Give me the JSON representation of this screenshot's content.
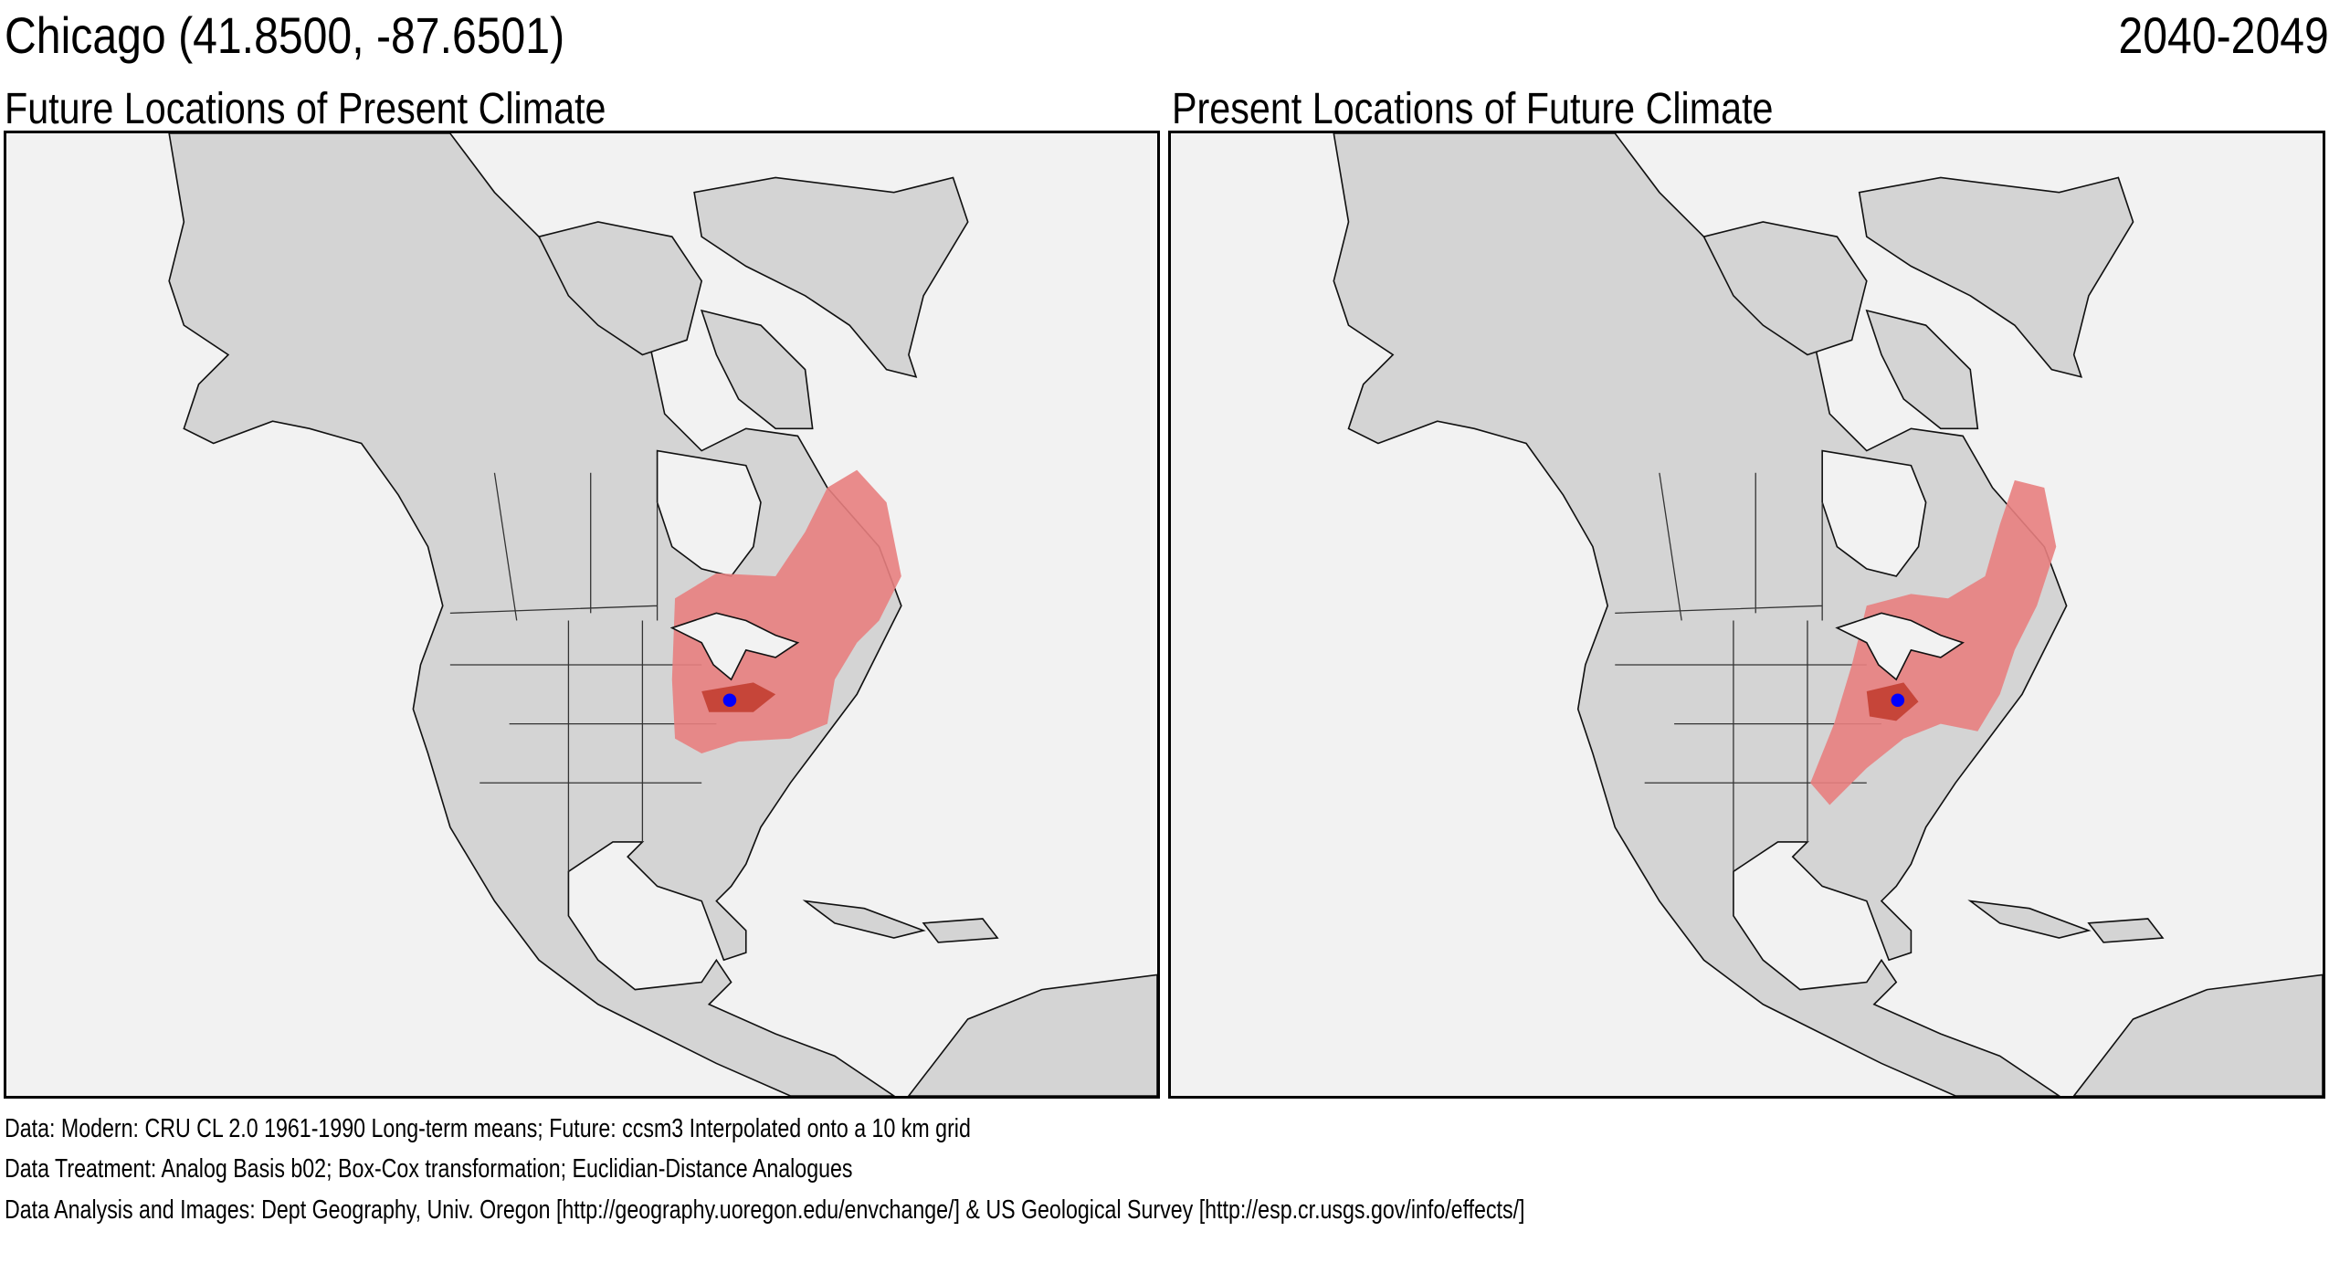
{
  "header": {
    "location": "Chicago  (41.8500, -87.6501)",
    "period": "2040-2049"
  },
  "panels": [
    {
      "title": "Future Locations of Present Climate"
    },
    {
      "title": "Present Locations of Future Climate"
    }
  ],
  "colors": {
    "analog": "#e88080",
    "analog_strong": "#c0392b",
    "site": "#0000ff",
    "land": "#d4d4d4",
    "ocean": "#f2f2f2"
  },
  "footer": {
    "data": "Data:  Modern: CRU CL 2.0 1961-1990 Long-term means; Future: ccsm3 Interpolated onto a 10 km grid",
    "treatment": "Data Treatment:  Analog Basis b02; Box-Cox transformation; Euclidian-Distance Analogues",
    "analysis": "Data Analysis and Images:  Dept Geography, Univ. Oregon [http://geography.uoregon.edu/envchange/] & US Geological Survey [http://esp.cr.usgs.gov/info/effects/]"
  }
}
